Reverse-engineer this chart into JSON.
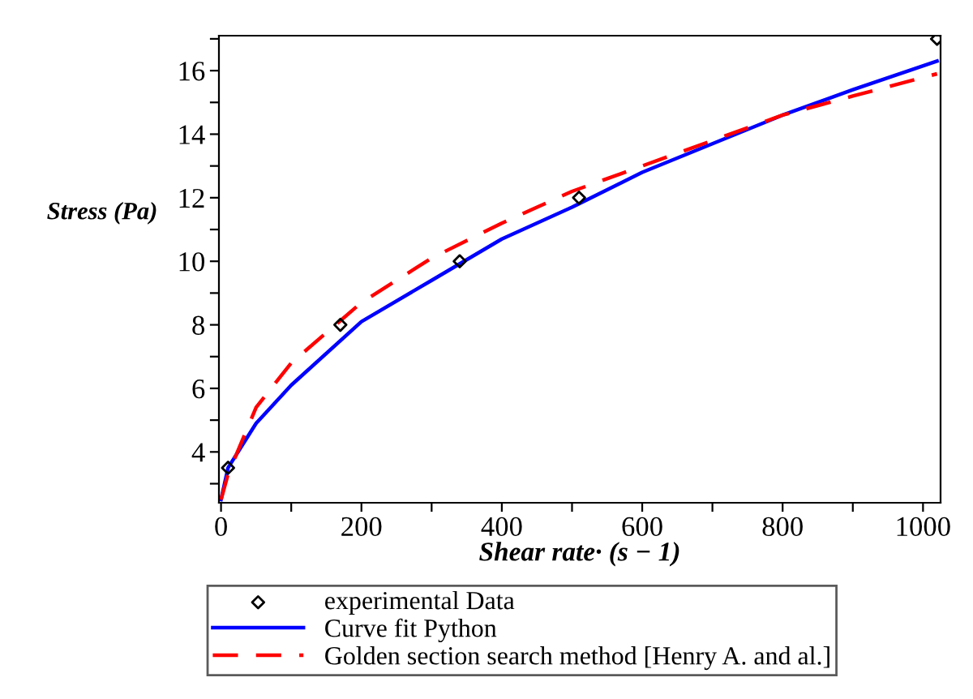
{
  "chart_data": {
    "type": "line",
    "xlabel": "Shear rate· (s − 1)",
    "ylabel": "Stress (Pa)",
    "xlim": [
      -3,
      1025
    ],
    "ylim": [
      2.4,
      17.1
    ],
    "xticks": [
      0,
      {
        "value": 100,
        "label": null
      },
      200,
      {
        "value": 300,
        "label": null
      },
      400,
      {
        "value": 500,
        "label": null
      },
      600,
      {
        "value": 700,
        "label": null
      },
      800,
      {
        "value": 900,
        "label": null
      },
      1000
    ],
    "yticks": [
      {
        "value": 3,
        "label": null
      },
      4,
      {
        "value": 5,
        "label": null
      },
      6,
      {
        "value": 7,
        "label": null
      },
      8,
      {
        "value": 9,
        "label": null
      },
      10,
      {
        "value": 11,
        "label": null
      },
      12,
      {
        "value": 13,
        "label": null
      },
      14,
      {
        "value": 15,
        "label": null
      },
      16,
      {
        "value": 17,
        "label": null
      }
    ],
    "grid": false,
    "legend": "bottom",
    "series": [
      {
        "name": "experimental Data",
        "type": "scatter",
        "marker": "diamond",
        "color": "#000000",
        "x": [
          10,
          170,
          340,
          510,
          1020
        ],
        "values": [
          3.5,
          8,
          10,
          12,
          17
        ]
      },
      {
        "name": "Curve fit Python",
        "line_style": "solid",
        "color": "#0000ff",
        "x": [
          0,
          10,
          50,
          100,
          200,
          300,
          400,
          500,
          600,
          700,
          800,
          900,
          1020
        ],
        "values": [
          2.5,
          3.5,
          4.9,
          6.1,
          8.1,
          9.4,
          10.7,
          11.7,
          12.8,
          13.7,
          14.6,
          15.4,
          16.3
        ]
      },
      {
        "name": "Golden section search method [Henry A. and al.]",
        "line_style": "dashed",
        "color": "#ff0000",
        "x": [
          0,
          10,
          50,
          100,
          200,
          300,
          400,
          500,
          600,
          700,
          800,
          900,
          1020
        ],
        "values": [
          2.5,
          3.3,
          5.4,
          6.8,
          8.7,
          10.1,
          11.2,
          12.2,
          13.0,
          13.8,
          14.6,
          15.2,
          15.9
        ]
      }
    ]
  }
}
